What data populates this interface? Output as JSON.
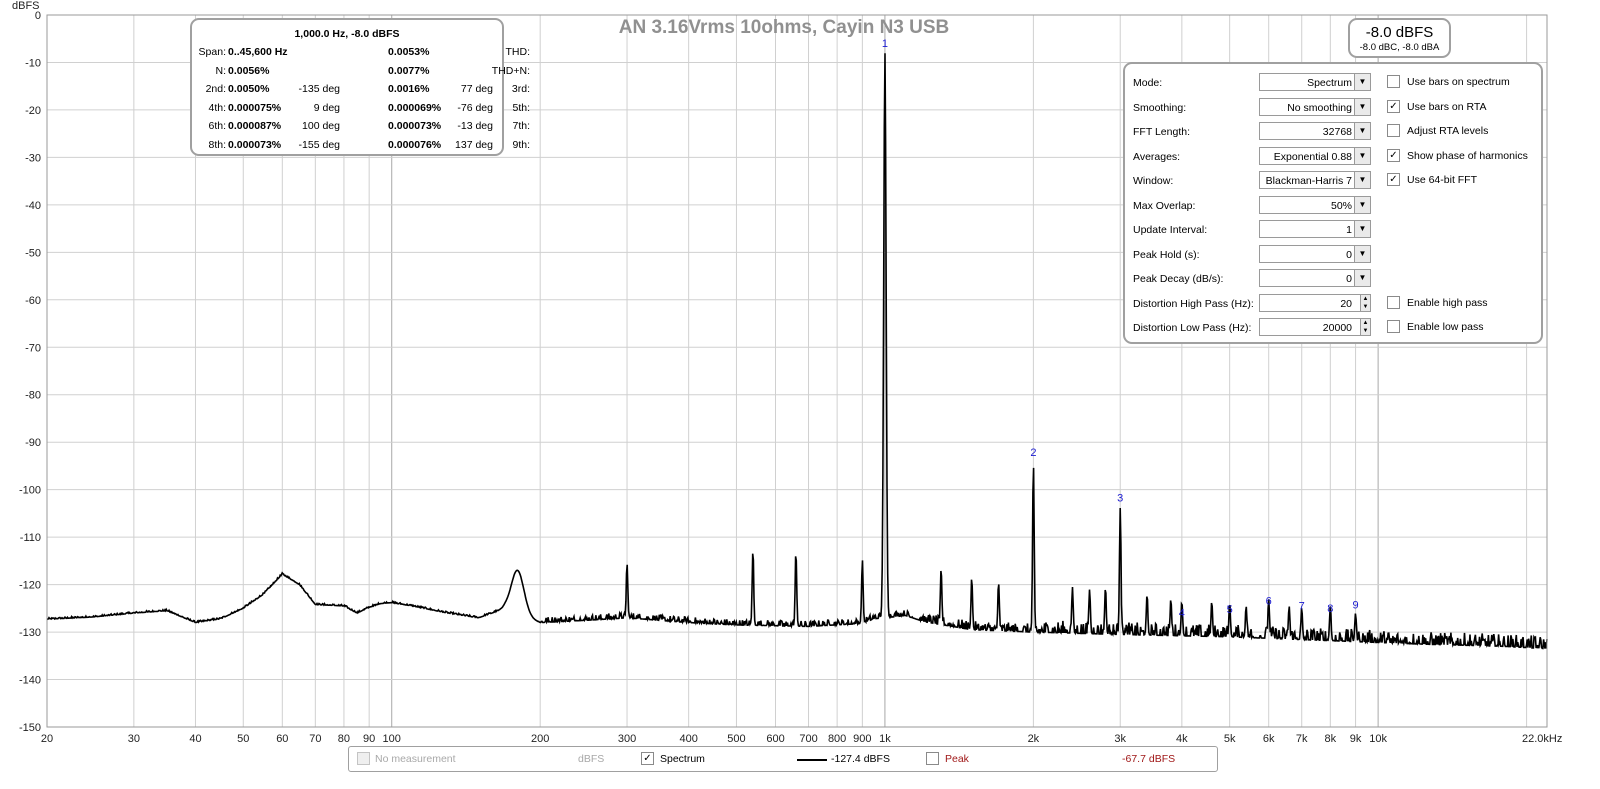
{
  "chart_data": {
    "type": "line",
    "title": "AN 3.16Vrms 10ohms, Cayin N3 USB",
    "ylabel": "dBFS",
    "xlabel": "",
    "x_scale": "log",
    "xlim": [
      20,
      22000
    ],
    "ylim": [
      -150,
      0
    ],
    "grid": true,
    "y_ticks": [
      0,
      -10,
      -20,
      -30,
      -40,
      -50,
      -60,
      -70,
      -80,
      -90,
      -100,
      -110,
      -120,
      -130,
      -140,
      -150
    ],
    "x_ticks": [
      {
        "v": 20,
        "label": "20"
      },
      {
        "v": 30,
        "label": "30"
      },
      {
        "v": 40,
        "label": "40"
      },
      {
        "v": 50,
        "label": "50"
      },
      {
        "v": 60,
        "label": "60"
      },
      {
        "v": 70,
        "label": "70"
      },
      {
        "v": 80,
        "label": "80"
      },
      {
        "v": 90,
        "label": "90"
      },
      {
        "v": 100,
        "label": "100"
      },
      {
        "v": 200,
        "label": "200"
      },
      {
        "v": 300,
        "label": "300"
      },
      {
        "v": 400,
        "label": "400"
      },
      {
        "v": 500,
        "label": "500"
      },
      {
        "v": 600,
        "label": "600"
      },
      {
        "v": 700,
        "label": "700"
      },
      {
        "v": 800,
        "label": "800"
      },
      {
        "v": 900,
        "label": "900"
      },
      {
        "v": 1000,
        "label": "1k"
      },
      {
        "v": 2000,
        "label": "2k"
      },
      {
        "v": 3000,
        "label": "3k"
      },
      {
        "v": 4000,
        "label": "4k"
      },
      {
        "v": 5000,
        "label": "5k"
      },
      {
        "v": 6000,
        "label": "6k"
      },
      {
        "v": 7000,
        "label": "7k"
      },
      {
        "v": 8000,
        "label": "8k"
      },
      {
        "v": 9000,
        "label": "9k"
      },
      {
        "v": 10000,
        "label": "10k"
      },
      {
        "v": 22000,
        "label": "22.0kHz"
      }
    ],
    "series": [
      {
        "name": "Spectrum",
        "color": "#000000",
        "floor": [
          [
            20,
            -127.3
          ],
          [
            25,
            -126.8
          ],
          [
            30,
            -126
          ],
          [
            35,
            -125.5
          ],
          [
            40,
            -128
          ],
          [
            45,
            -127.2
          ],
          [
            50,
            -125
          ],
          [
            55,
            -122
          ],
          [
            60,
            -117.8
          ],
          [
            65,
            -120
          ],
          [
            70,
            -124.2
          ],
          [
            80,
            -124.5
          ],
          [
            85,
            -126
          ],
          [
            90,
            -124.8
          ],
          [
            95,
            -124
          ],
          [
            100,
            -123.8
          ],
          [
            110,
            -124.5
          ],
          [
            130,
            -126
          ],
          [
            150,
            -127
          ],
          [
            170,
            -125
          ],
          [
            200,
            -128
          ],
          [
            250,
            -127.5
          ],
          [
            300,
            -127
          ],
          [
            400,
            -128
          ],
          [
            500,
            -128.5
          ],
          [
            700,
            -128.8
          ],
          [
            900,
            -128.2
          ],
          [
            950,
            -127.2
          ],
          [
            1000,
            -127
          ],
          [
            1100,
            -126.5
          ],
          [
            1200,
            -127.8
          ],
          [
            1500,
            -129.5
          ],
          [
            2000,
            -130
          ],
          [
            3000,
            -130.5
          ],
          [
            5000,
            -131
          ],
          [
            8000,
            -131.8
          ],
          [
            12000,
            -132.5
          ],
          [
            18000,
            -133
          ],
          [
            22000,
            -133.5
          ]
        ],
        "peaks": [
          [
            60,
            -117.8
          ],
          [
            180,
            -117
          ],
          [
            300,
            -115.5
          ],
          [
            540,
            -112.6
          ],
          [
            660,
            -113
          ],
          [
            900,
            -114.8
          ],
          [
            1000,
            -8.0
          ],
          [
            1300,
            -116.5
          ],
          [
            1500,
            -118.5
          ],
          [
            1700,
            -119.5
          ],
          [
            2000,
            -94.2
          ],
          [
            2400,
            -120.5
          ],
          [
            2600,
            -121
          ],
          [
            2800,
            -120.5
          ],
          [
            3000,
            -103.8
          ],
          [
            3400,
            -122
          ],
          [
            3800,
            -123
          ],
          [
            4000,
            -123.5
          ],
          [
            4600,
            -123.5
          ],
          [
            5000,
            -123.8
          ],
          [
            5400,
            -124.5
          ],
          [
            6000,
            -123
          ],
          [
            6600,
            -124.5
          ],
          [
            7000,
            -124.8
          ],
          [
            8000,
            -124.5
          ],
          [
            9000,
            -126
          ]
        ],
        "harmonic_markers": [
          {
            "n": "1",
            "f": 1000,
            "db": -8.0
          },
          {
            "n": "2",
            "f": 2000,
            "db": -94.2
          },
          {
            "n": "3",
            "f": 3000,
            "db": -103.8
          },
          {
            "n": "4",
            "f": 4000,
            "db": -128
          },
          {
            "n": "5",
            "f": 5000,
            "db": -127.2
          },
          {
            "n": "6",
            "f": 6000,
            "db": -125.5
          },
          {
            "n": "7",
            "f": 7000,
            "db": -126.5
          },
          {
            "n": "8",
            "f": 8000,
            "db": -127
          },
          {
            "n": "9",
            "f": 9000,
            "db": -126.3
          }
        ]
      }
    ]
  },
  "stats": {
    "header": "1,000.0 Hz, -8.0 dBFS",
    "rows": [
      [
        {
          "l": "Span:",
          "v": "0..45,600 Hz"
        },
        {
          "l": "",
          "v": ""
        },
        {
          "l": "THD:",
          "v": "0.0053%"
        },
        {
          "l": "",
          "v": ""
        }
      ],
      [
        {
          "l": "N:",
          "v": "0.0056%"
        },
        {
          "l": "",
          "v": ""
        },
        {
          "l": "THD+N:",
          "v": "0.0077%"
        },
        {
          "l": "",
          "v": ""
        }
      ],
      [
        {
          "l": "2nd:",
          "v": "0.0050%"
        },
        {
          "l": "",
          "v": "-135 deg"
        },
        {
          "l": "3rd:",
          "v": "0.0016%"
        },
        {
          "l": "",
          "v": "77 deg"
        }
      ],
      [
        {
          "l": "4th:",
          "v": "0.000075%"
        },
        {
          "l": "",
          "v": "9 deg"
        },
        {
          "l": "5th:",
          "v": "0.000069%"
        },
        {
          "l": "",
          "v": "-76 deg"
        }
      ],
      [
        {
          "l": "6th:",
          "v": "0.000087%"
        },
        {
          "l": "",
          "v": "100 deg"
        },
        {
          "l": "7th:",
          "v": "0.000073%"
        },
        {
          "l": "",
          "v": "-13 deg"
        }
      ],
      [
        {
          "l": "8th:",
          "v": "0.000073%"
        },
        {
          "l": "",
          "v": "-155 deg"
        },
        {
          "l": "9th:",
          "v": "0.000076%"
        },
        {
          "l": "",
          "v": "137 deg"
        }
      ]
    ]
  },
  "level": {
    "main": "-8.0 dBFS",
    "sub": "-8.0 dBC, -8.0 dBA"
  },
  "settings": [
    {
      "label": "Mode:",
      "value": "Spectrum",
      "control": "dropdown"
    },
    {
      "label": "Smoothing:",
      "value": "No  smoothing",
      "control": "dropdown"
    },
    {
      "label": "FFT Length:",
      "value": "32768",
      "control": "dropdown"
    },
    {
      "label": "Averages:",
      "value": "Exponential 0.88",
      "control": "dropdown"
    },
    {
      "label": "Window:",
      "value": "Blackman-Harris 7",
      "control": "dropdown"
    },
    {
      "label": "Max Overlap:",
      "value": "50%",
      "control": "dropdown"
    },
    {
      "label": "Update Interval:",
      "value": "1",
      "control": "dropdown"
    },
    {
      "label": "Peak Hold (s):",
      "value": "0",
      "control": "dropdown"
    },
    {
      "label": "Peak Decay (dB/s):",
      "value": "0",
      "control": "dropdown"
    },
    {
      "label": "Distortion High Pass (Hz):",
      "value": "20",
      "control": "spinner"
    },
    {
      "label": "Distortion Low Pass (Hz):",
      "value": "20000",
      "control": "spinner"
    }
  ],
  "checkboxes": [
    {
      "label": "Use bars on spectrum",
      "checked": false,
      "row": 0
    },
    {
      "label": "Use bars on RTA",
      "checked": true,
      "row": 1
    },
    {
      "label": "Adjust RTA levels",
      "checked": false,
      "row": 2
    },
    {
      "label": "Show phase of harmonics",
      "checked": true,
      "row": 3
    },
    {
      "label": "Use 64-bit FFT",
      "checked": true,
      "row": 4
    },
    {
      "label": "Enable high pass",
      "checked": false,
      "row": 9
    },
    {
      "label": "Enable low pass",
      "checked": false,
      "row": 10
    }
  ],
  "legend": {
    "no_measurement": "No measurement",
    "no_measurement_unit": "dBFS",
    "spectrum_label": "Spectrum",
    "spectrum_value": "-127.4 dBFS",
    "peak_label": "Peak",
    "peak_value": "-67.7 dBFS",
    "peak_color": "#a01818"
  }
}
